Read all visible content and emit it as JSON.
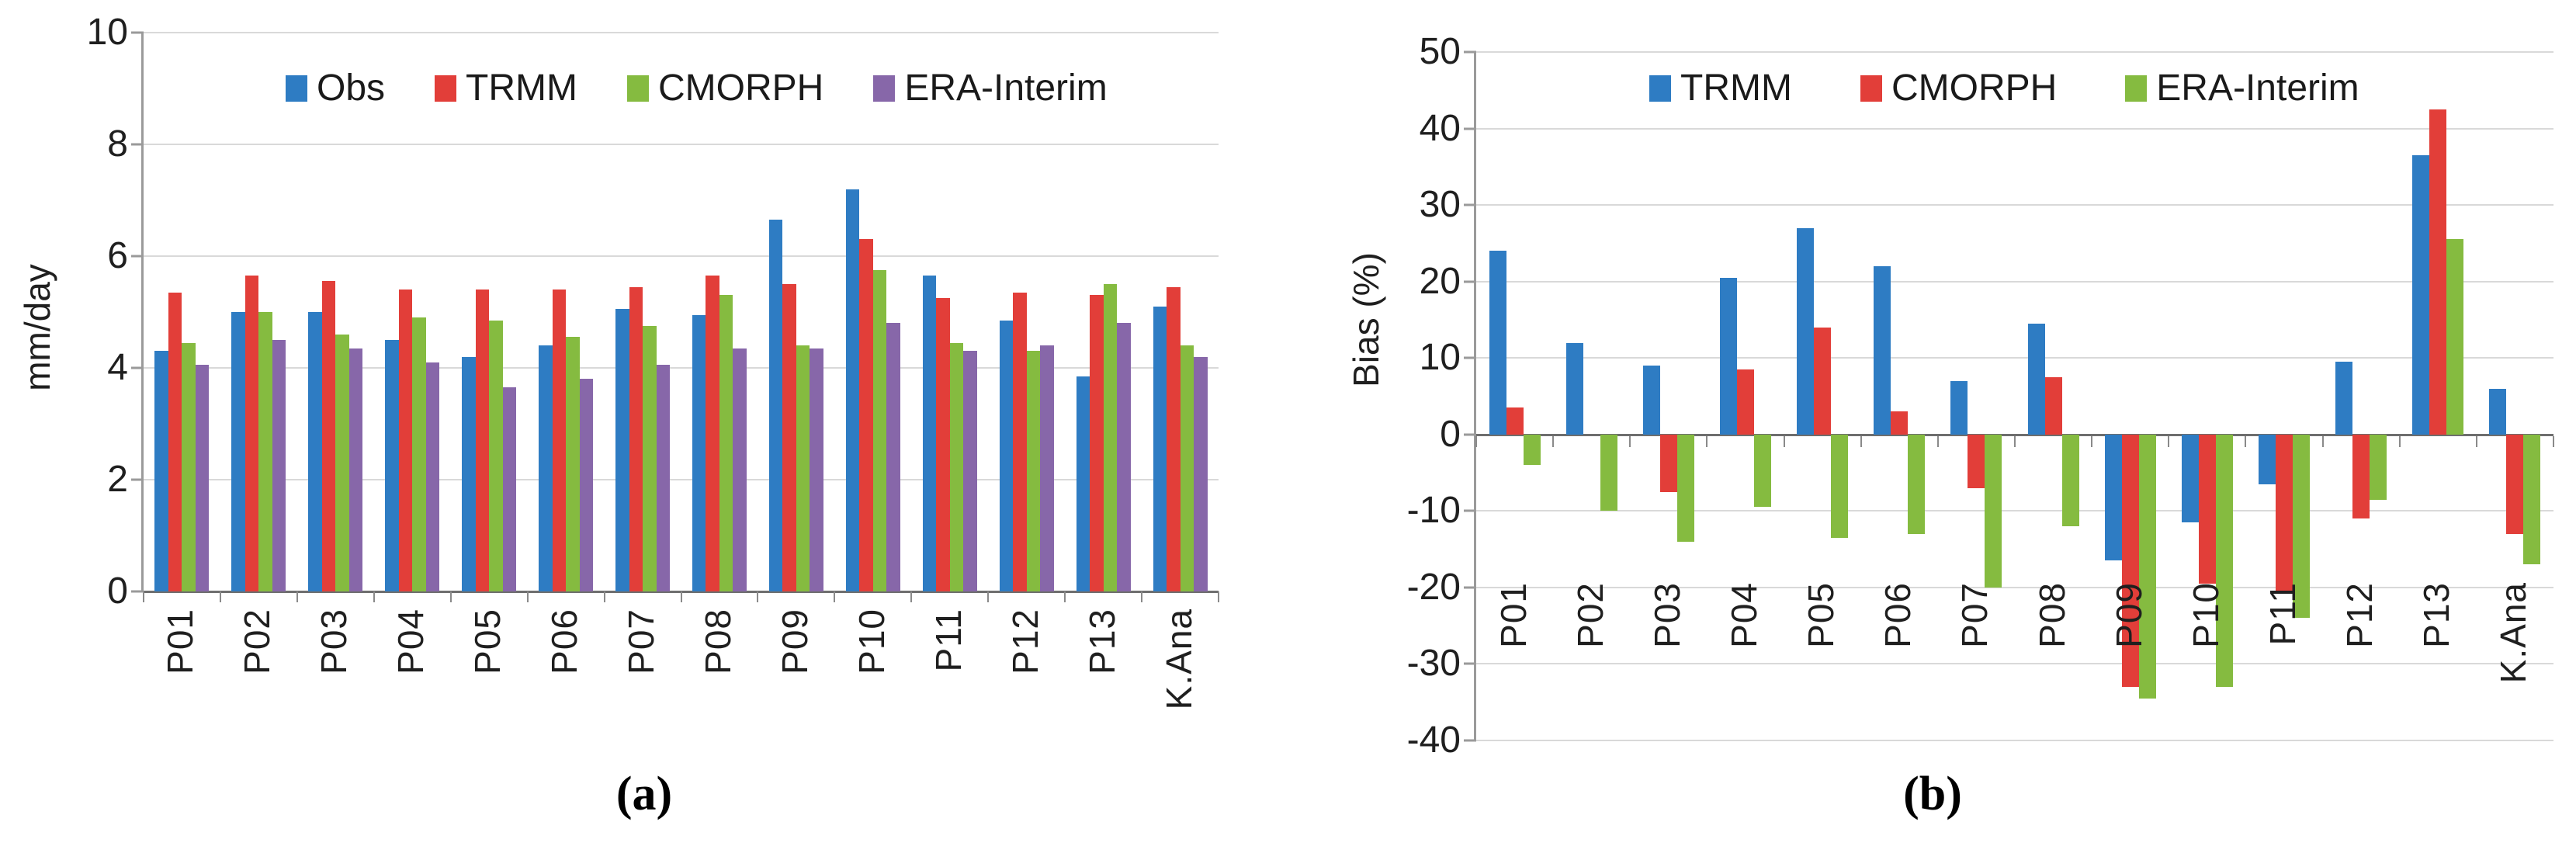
{
  "figure": {
    "background": "#ffffff",
    "captions": {
      "a": "(a)",
      "b": "(b)"
    },
    "colors": {
      "obs_blue": "#2e7cc3",
      "trmm_red": "#e23e39",
      "cmorph_green": "#85bb40",
      "era_purple": "#8767a9",
      "gridline": "#d9d9d9",
      "axis": "#9a9a9a",
      "zero_line": "#6e6e6e",
      "text": "#1f1f1f"
    }
  },
  "chart_data": [
    {
      "type": "bar",
      "panel": "a",
      "title": "",
      "xlabel": "",
      "ylabel": "mm/day",
      "ylim": [
        0,
        10
      ],
      "ytick_step": 2,
      "yticks": [
        10,
        8,
        6,
        4,
        2,
        0
      ],
      "grid": true,
      "legend_position": "top",
      "categories": [
        "P01",
        "P02",
        "P03",
        "P04",
        "P05",
        "P06",
        "P07",
        "P08",
        "P09",
        "P10",
        "P11",
        "P12",
        "P13",
        "K.Ana"
      ],
      "series": [
        {
          "name": "Obs",
          "color": "#2e7cc3",
          "values": [
            4.3,
            5.0,
            5.0,
            4.5,
            4.2,
            4.4,
            5.05,
            4.95,
            6.65,
            7.2,
            5.65,
            4.85,
            3.85,
            5.1
          ]
        },
        {
          "name": "TRMM",
          "color": "#e23e39",
          "values": [
            5.35,
            5.65,
            5.55,
            5.4,
            5.4,
            5.4,
            5.45,
            5.65,
            5.5,
            6.3,
            5.25,
            5.35,
            5.3,
            5.45
          ]
        },
        {
          "name": "CMORPH",
          "color": "#85bb40",
          "values": [
            4.45,
            5.0,
            4.6,
            4.9,
            4.85,
            4.55,
            4.75,
            5.3,
            4.4,
            5.75,
            4.45,
            4.3,
            5.5,
            4.4
          ]
        },
        {
          "name": "ERA-Interim",
          "color": "#8767a9",
          "values": [
            4.05,
            4.5,
            4.35,
            4.1,
            3.65,
            3.8,
            4.05,
            4.35,
            4.35,
            4.8,
            4.3,
            4.4,
            4.8,
            4.2
          ]
        }
      ]
    },
    {
      "type": "bar",
      "panel": "b",
      "title": "",
      "xlabel": "",
      "ylabel": "Bias (%)",
      "ylim": [
        -40,
        50
      ],
      "ytick_step": 10,
      "yticks": [
        50,
        40,
        30,
        20,
        10,
        0,
        -10,
        -20,
        -30,
        -40
      ],
      "grid": true,
      "legend_position": "top",
      "categories": [
        "P01",
        "P02",
        "P03",
        "P04",
        "P05",
        "P06",
        "P07",
        "P08",
        "P09",
        "P10",
        "P11",
        "P12",
        "P13",
        "K.Ana"
      ],
      "series": [
        {
          "name": "TRMM",
          "color": "#2e7cc3",
          "values": [
            24,
            12,
            9,
            20.5,
            27,
            22,
            7,
            14.5,
            -16.5,
            -11.5,
            -6.5,
            9.5,
            36.5,
            6
          ]
        },
        {
          "name": "CMORPH",
          "color": "#e23e39",
          "values": [
            3.5,
            0,
            -7.5,
            8.5,
            14,
            3,
            -7,
            7.5,
            -33,
            -19.5,
            -20.5,
            -11,
            42.5,
            -13
          ]
        },
        {
          "name": "ERA-Interim",
          "color": "#85bb40",
          "values": [
            -4,
            -10,
            -14,
            -9.5,
            -13.5,
            -13,
            -20,
            -12,
            -34.5,
            -33,
            -24,
            -8.5,
            25.5,
            -17
          ]
        }
      ]
    }
  ]
}
